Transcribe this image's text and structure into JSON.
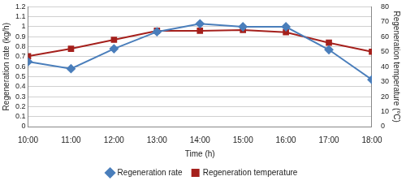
{
  "chart_data": {
    "type": "line",
    "categories": [
      "10:00",
      "11:00",
      "12:00",
      "13:00",
      "14:00",
      "15:00",
      "16:00",
      "17:00",
      "18:00"
    ],
    "x_label": "Time (h)",
    "y_label": "Regeneration rate (kg/h)",
    "y2_label": "Regeneration temperature (°C)",
    "ylim": [
      0,
      1.2
    ],
    "yticks": [
      0,
      0.1,
      0.2,
      0.3,
      0.4,
      0.5,
      0.6,
      0.7,
      0.8,
      0.9,
      1,
      1.1,
      1.2
    ],
    "y2lim": [
      0,
      80
    ],
    "y2ticks": [
      0,
      10,
      20,
      30,
      40,
      50,
      60,
      70,
      80
    ],
    "grid": true,
    "legend": "bottom",
    "series": [
      {
        "name": "Regeneration rate",
        "color": "#4a7ebb",
        "marker": "diamond",
        "values": [
          0.65,
          0.58,
          0.78,
          0.95,
          1.03,
          1.0,
          1.0,
          0.77,
          0.47
        ]
      },
      {
        "name": "Regeneration temperature",
        "color": "#a5201c",
        "marker": "square",
        "axis": "y2",
        "values": [
          47,
          52,
          58,
          64,
          64,
          64.5,
          63,
          56,
          50
        ]
      }
    ]
  }
}
